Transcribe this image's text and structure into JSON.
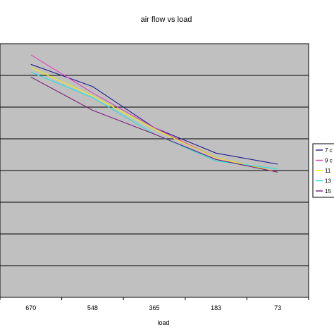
{
  "chart_data": {
    "type": "line",
    "title": "air flow vs load",
    "xlabel": "load",
    "ylabel": "",
    "categories": [
      "670",
      "548",
      "365",
      "183",
      "73"
    ],
    "ylim": [
      0,
      8
    ],
    "grid": true,
    "legend_position": "right",
    "series": [
      {
        "name": "7 c",
        "color": "#1f1f8f",
        "values": [
          7.35,
          6.65,
          5.35,
          4.55,
          4.2
        ]
      },
      {
        "name": "9 c",
        "color": "#e040c0",
        "values": [
          7.65,
          6.45,
          5.35,
          4.4,
          3.95
        ]
      },
      {
        "name": "11",
        "color": "#f2f200",
        "values": [
          7.25,
          6.35,
          5.3,
          4.4,
          3.95
        ]
      },
      {
        "name": "13",
        "color": "#20e0e0",
        "values": [
          7.1,
          6.3,
          5.15,
          4.3,
          4.05
        ]
      },
      {
        "name": "15",
        "color": "#7a1f7a",
        "values": [
          6.95,
          5.9,
          5.15,
          4.35,
          3.95
        ]
      }
    ]
  }
}
